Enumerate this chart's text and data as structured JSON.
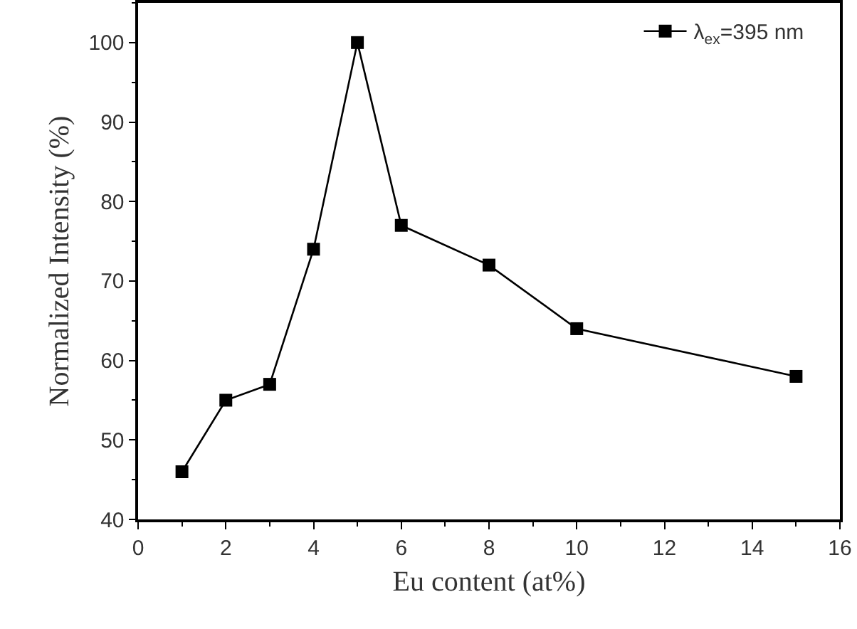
{
  "chart_data": {
    "type": "line",
    "xlabel": "Eu content (at%)",
    "ylabel": "Normalized Intensity (%)",
    "x": [
      1,
      2,
      3,
      4,
      5,
      6,
      8,
      10,
      15
    ],
    "series": [
      {
        "name": "λ$_{ex}$=395 nm",
        "color": "#000000",
        "values": [
          46,
          55,
          57,
          74,
          100,
          77,
          72,
          64,
          58
        ]
      }
    ],
    "xlim": [
      0,
      16
    ],
    "xticks": [
      0,
      2,
      4,
      6,
      8,
      10,
      12,
      14,
      16
    ],
    "ylim": [
      40,
      105
    ],
    "yticks": [
      40,
      50,
      60,
      70,
      80,
      90,
      100
    ],
    "marker": "square",
    "line_style": "solid",
    "grid": false,
    "legend": "top right"
  }
}
